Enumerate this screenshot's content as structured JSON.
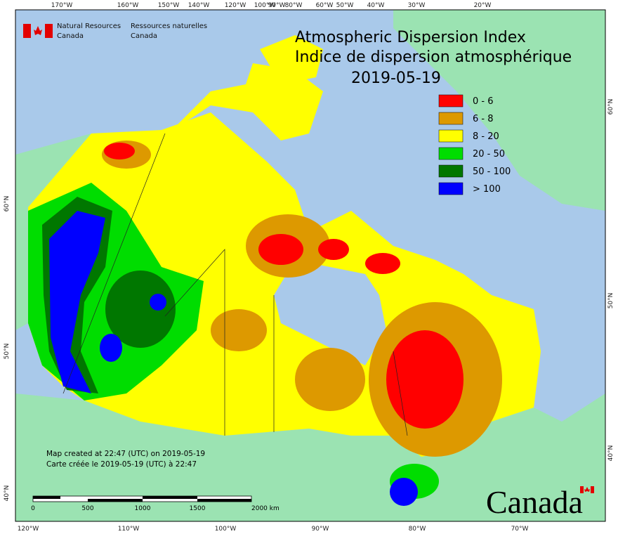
{
  "agency": {
    "en": [
      "Natural Resources",
      "Canada"
    ],
    "fr": [
      "Ressources naturelles",
      "Canada"
    ]
  },
  "title": [
    "Atmospheric Dispersion Index",
    "Indice de dispersion atmosphérique",
    "2019-05-19"
  ],
  "legend": [
    {
      "label": "0 - 6",
      "color": "#ff0000"
    },
    {
      "label": "6 - 8",
      "color": "#dd9900"
    },
    {
      "label": "8 - 20",
      "color": "#ffff00"
    },
    {
      "label": "20 - 50",
      "color": "#00dd00"
    },
    {
      "label": "50 - 100",
      "color": "#007700"
    },
    {
      "label": "> 100",
      "color": "#0000ff"
    }
  ],
  "top_axis": [
    "170°W",
    "160°W",
    "150°W",
    "140°W",
    "120°W",
    "100°W",
    "90°W",
    "80°W",
    "60°W",
    "50°W",
    "40°W",
    "30°W",
    "20°W"
  ],
  "bottom_axis": [
    "120°W",
    "110°W",
    "100°W",
    "90°W",
    "80°W",
    "70°W"
  ],
  "left_axis": [
    "60°N",
    "50°N",
    "40°N"
  ],
  "right_axis": [
    "60°N",
    "50°N",
    "40°N"
  ],
  "footer_note": [
    "Map created at 22:47 (UTC) on 2019-05-19",
    "Carte créée le 2019-05-19 (UTC) à 22:47"
  ],
  "scale_bar": [
    "0",
    "500",
    "1000",
    "1500",
    "2000 km"
  ],
  "wordmark": "Canada"
}
